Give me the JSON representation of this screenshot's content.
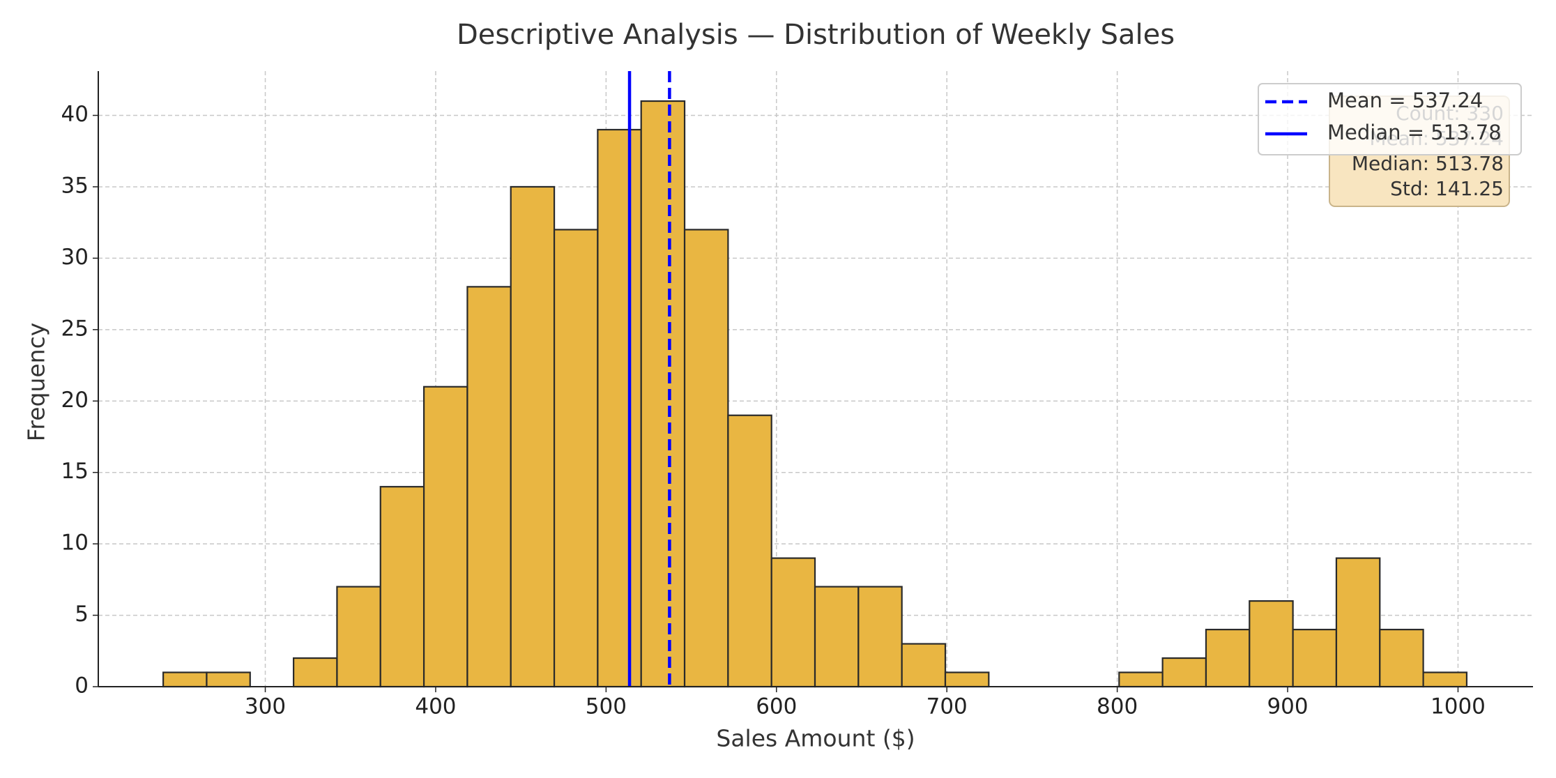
{
  "chart_data": {
    "type": "histogram",
    "title": "Descriptive Analysis — Distribution of Weekly Sales",
    "x_label": "Sales Amount ($)",
    "y_label": "Frequency",
    "bins": [
      240.1,
      265.6,
      291.1,
      316.6,
      342.1,
      367.6,
      393.1,
      418.6,
      444.1,
      469.6,
      495.1,
      520.6,
      546.1,
      571.6,
      597.1,
      622.6,
      648.1,
      673.6,
      699.1,
      724.6,
      750.1,
      775.6,
      801.1,
      826.6,
      852.1,
      877.6,
      903.1,
      928.6,
      954.1,
      979.6,
      1005.1
    ],
    "values": [
      1,
      1,
      0,
      2,
      7,
      14,
      21,
      28,
      35,
      32,
      39,
      41,
      32,
      19,
      9,
      7,
      7,
      3,
      1,
      0,
      0,
      0,
      1,
      2,
      4,
      6,
      4,
      9,
      4,
      1
    ],
    "color": "#e9b642",
    "edgecolor": "#2a2a2a",
    "xlim": [
      202,
      1044
    ],
    "ylim": [
      0,
      43.1
    ],
    "xticks": [
      300,
      400,
      500,
      600,
      700,
      800,
      900,
      1000
    ],
    "yticks": [
      0,
      5,
      10,
      15,
      20,
      25,
      30,
      35,
      40
    ],
    "grid": true,
    "reference_lines": [
      {
        "name": "Mean = 537.24",
        "value": 537.24,
        "color": "#0000ff",
        "style": "dashed"
      },
      {
        "name": "Median = 513.78",
        "value": 513.78,
        "color": "#0000ff",
        "style": "solid"
      }
    ],
    "legend": "upper right",
    "stats_box": [
      "Count: 330",
      "Mean: 537.24",
      "Median: 513.78",
      "Std: 141.25"
    ]
  }
}
